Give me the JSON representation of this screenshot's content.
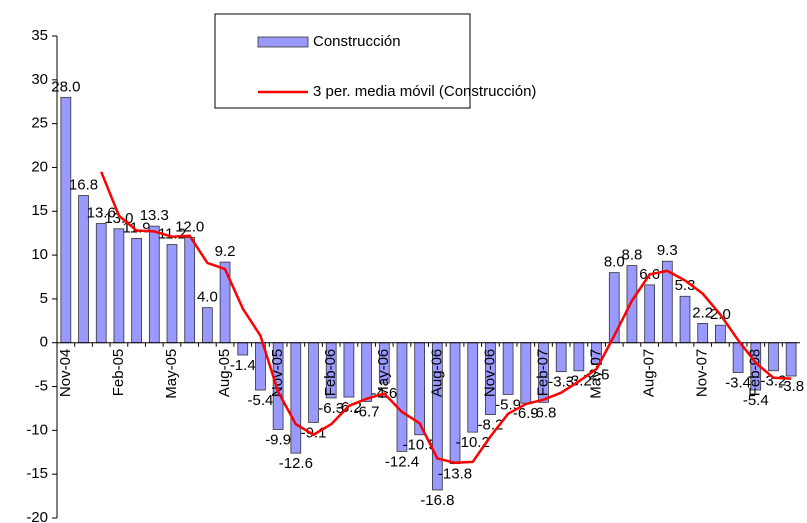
{
  "chart_data": {
    "type": "bar",
    "categories": [
      "Nov-04",
      null,
      null,
      "Feb-05",
      null,
      null,
      "May-05",
      null,
      null,
      "Aug-05",
      null,
      null,
      "Nov-05",
      null,
      null,
      "Feb-06",
      null,
      null,
      "May-06",
      null,
      null,
      "Aug-06",
      null,
      null,
      "Nov-06",
      null,
      null,
      "Feb-07",
      null,
      null,
      "May-07",
      null,
      null,
      "Aug-07",
      null,
      null,
      "Nov-07",
      null,
      null,
      "Feb-08",
      null,
      null
    ],
    "series": [
      {
        "name": "Construcción",
        "type": "bar",
        "color": "#9999ff",
        "values": [
          28.0,
          16.8,
          13.6,
          13.0,
          11.9,
          13.3,
          11.2,
          12.0,
          4.0,
          9.2,
          -1.4,
          -5.4,
          -9.9,
          -12.6,
          -9.1,
          -6.3,
          -6.2,
          -6.7,
          -4.6,
          -12.4,
          -10.5,
          -16.8,
          -13.8,
          -10.2,
          -8.2,
          -5.9,
          -6.9,
          -6.8,
          -3.3,
          -3.2,
          -2.5,
          8.0,
          8.8,
          6.6,
          9.3,
          5.3,
          2.2,
          2.0,
          -3.4,
          -5.4,
          -3.2,
          -3.8
        ],
        "value_labels": [
          "28.0",
          "16.8",
          "13.6",
          "13.0",
          "11.9",
          "13.3",
          "11.2",
          "12.0",
          "4.0",
          "9.2",
          "-1.4",
          "-5.4",
          "-9.9",
          "-12.6",
          "-9.1",
          "-6.3",
          "-6.2",
          "-6.7",
          "-4.6",
          "-12.4",
          "-10.5",
          "-16.8",
          "-13.8",
          "-10.2",
          "-8.2",
          "-5.9",
          "-6.9",
          "-6.8",
          "-3.3",
          "-3.2",
          "-2.5",
          "8.0",
          "8.8",
          "6.6",
          "9.3",
          "5.3",
          "2.2",
          "2.0",
          "-3.4",
          "-5.4",
          "-3.2",
          "-3.8"
        ]
      },
      {
        "name": "3 per. media móvil (Construcción)",
        "type": "line",
        "color": "#ff0000",
        "values": [
          null,
          null,
          19.5,
          14.5,
          12.8,
          12.7,
          12.1,
          12.2,
          9.1,
          8.4,
          3.9,
          0.8,
          -5.6,
          -9.3,
          -10.5,
          -9.3,
          -7.2,
          -6.4,
          -5.8,
          -7.9,
          -9.2,
          -13.2,
          -13.7,
          -13.6,
          -10.7,
          -8.1,
          -7.0,
          -6.5,
          -5.7,
          -4.4,
          -3.0,
          0.8,
          4.8,
          7.8,
          8.2,
          7.1,
          5.6,
          3.2,
          0.3,
          -2.3,
          -4.0,
          -4.1
        ]
      }
    ],
    "ylim": [
      -20,
      35
    ],
    "yticks": [
      -20,
      -15,
      -10,
      -5,
      0,
      5,
      10,
      15,
      20,
      25,
      30,
      35
    ],
    "grid": false,
    "legend": "top"
  }
}
